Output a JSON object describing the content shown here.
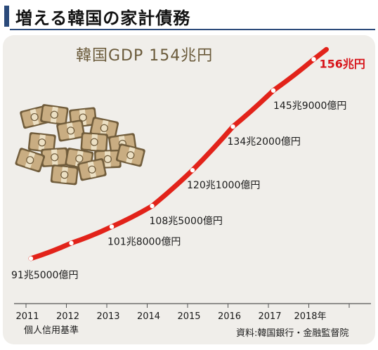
{
  "title": "増える韓国の家計債務",
  "chart_data": {
    "type": "line",
    "categories": [
      "2011",
      "2012",
      "2013",
      "2014",
      "2015",
      "2016",
      "2017",
      "2018年"
    ],
    "series": [
      {
        "values": [
          91.5,
          96.5,
          101.8,
          108.5,
          120.1,
          134.2,
          145.9,
          156
        ],
        "labels": [
          "91兆5000億円",
          "",
          "101兆8000億円",
          "108兆5000億円",
          "120兆1000億円",
          "134兆2000億円",
          "145兆9000億円",
          "156兆円"
        ]
      }
    ],
    "annotation": "韓国GDP 154兆円",
    "ylim": [
      86,
      162
    ],
    "colors": {
      "line": "#e2231a",
      "final_label": "#d7141a",
      "panel": "#f0eeea",
      "title_accent": "#2b4a7a"
    },
    "grid": false
  },
  "footer": {
    "left": "個人信用基準",
    "right": "資料:韓国銀行・金融監督院"
  }
}
